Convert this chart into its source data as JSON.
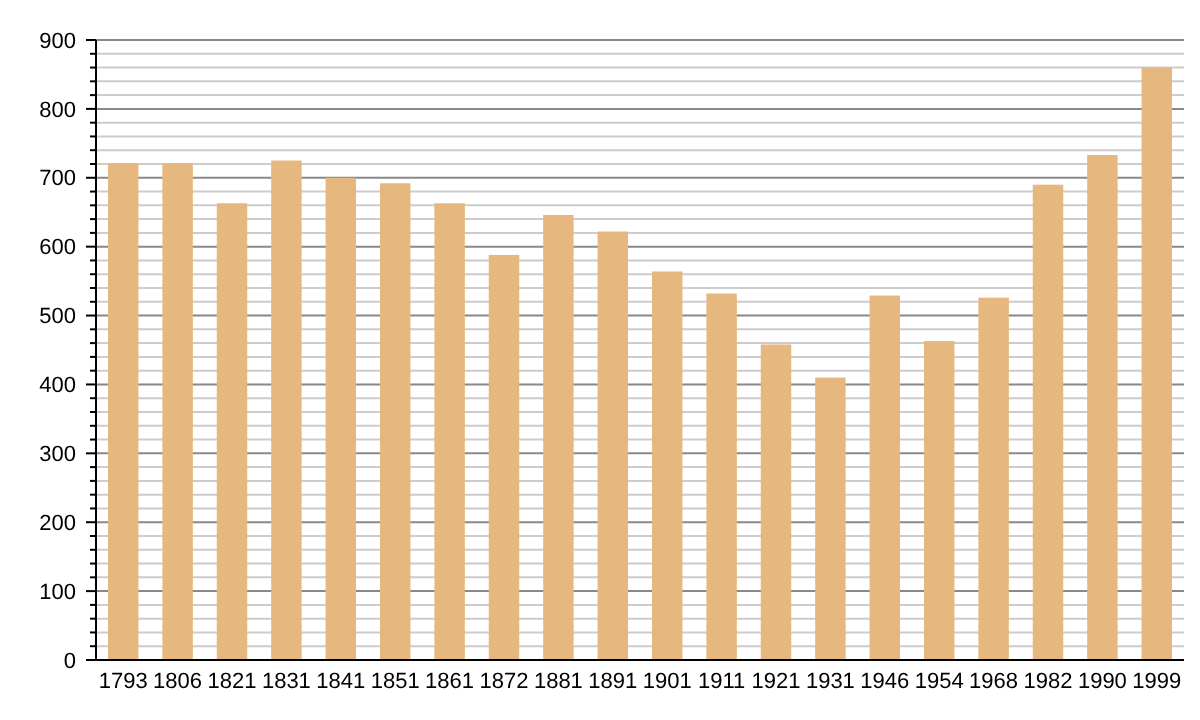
{
  "chart_data": {
    "type": "bar",
    "categories": [
      "1793",
      "1806",
      "1821",
      "1831",
      "1841",
      "1851",
      "1861",
      "1872",
      "1881",
      "1891",
      "1901",
      "1911",
      "1921",
      "1931",
      "1946",
      "1954",
      "1968",
      "1982",
      "1990",
      "1999"
    ],
    "values": [
      721,
      721,
      663,
      725,
      700,
      692,
      663,
      588,
      646,
      622,
      564,
      532,
      458,
      410,
      529,
      463,
      526,
      690,
      733,
      860
    ],
    "color": "#e6b77e",
    "ylim": [
      0,
      900
    ],
    "yticks": [
      0,
      {
        "value": 20,
        "label": null
      },
      {
        "value": 40,
        "label": null
      },
      {
        "value": 60,
        "label": null
      },
      {
        "value": 80,
        "label": null
      },
      100,
      {
        "value": 120,
        "label": null
      },
      {
        "value": 140,
        "label": null
      },
      {
        "value": 160,
        "label": null
      },
      {
        "value": 180,
        "label": null
      },
      200,
      {
        "value": 220,
        "label": null
      },
      {
        "value": 240,
        "label": null
      },
      {
        "value": 260,
        "label": null
      },
      {
        "value": 280,
        "label": null
      },
      300,
      {
        "value": 320,
        "label": null
      },
      {
        "value": 340,
        "label": null
      },
      {
        "value": 360,
        "label": null
      },
      {
        "value": 380,
        "label": null
      },
      400,
      {
        "value": 420,
        "label": null
      },
      {
        "value": 440,
        "label": null
      },
      {
        "value": 460,
        "label": null
      },
      {
        "value": 480,
        "label": null
      },
      500,
      {
        "value": 520,
        "label": null
      },
      {
        "value": 540,
        "label": null
      },
      {
        "value": 560,
        "label": null
      },
      {
        "value": 580,
        "label": null
      },
      600,
      {
        "value": 620,
        "label": null
      },
      {
        "value": 640,
        "label": null
      },
      {
        "value": 660,
        "label": null
      },
      {
        "value": 680,
        "label": null
      },
      700,
      {
        "value": 720,
        "label": null
      },
      {
        "value": 740,
        "label": null
      },
      {
        "value": 760,
        "label": null
      },
      {
        "value": 780,
        "label": null
      },
      800,
      {
        "value": 820,
        "label": null
      },
      {
        "value": 840,
        "label": null
      },
      {
        "value": 860,
        "label": null
      },
      {
        "value": 880,
        "label": null
      },
      900
    ],
    "grid": "y"
  }
}
